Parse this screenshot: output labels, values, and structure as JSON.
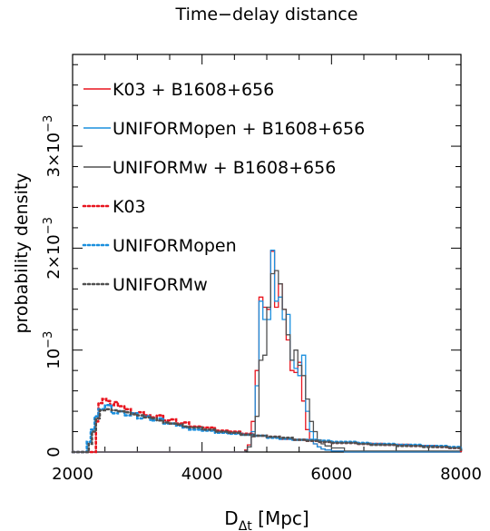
{
  "chart_data": {
    "type": "line",
    "title": "Time−delay distance",
    "xlabel": "D",
    "xlabel_sub": "Δt",
    "xlabel_unit": "[Mpc]",
    "ylabel": "probability density",
    "xlim": [
      2000,
      8000
    ],
    "ylim": [
      0,
      0.0039
    ],
    "grid": false,
    "legend_position": "top-left",
    "x_ticks": [
      {
        "value": 2000,
        "label": "2000"
      },
      {
        "value": 4000,
        "label": "4000"
      },
      {
        "value": 6000,
        "label": "6000"
      },
      {
        "value": 8000,
        "label": "8000"
      }
    ],
    "y_ticks": [
      {
        "value": 0,
        "label": "0"
      },
      {
        "value": 0.001,
        "label": "10",
        "exp": "−3"
      },
      {
        "value": 0.002,
        "label": "2×10",
        "exp": "−3"
      },
      {
        "value": 0.003,
        "label": "3×10",
        "exp": "−3"
      }
    ],
    "series": [
      {
        "name": "K03 + B1608+656",
        "color": "#e8141e",
        "style": "solid",
        "x": [
          2000,
          4600,
          4660,
          4700,
          4760,
          4820,
          4880,
          4940,
          5000,
          5060,
          5120,
          5180,
          5240,
          5300,
          5360,
          5420,
          5480,
          5540,
          5600,
          5660,
          5720,
          5780,
          5840,
          5900,
          6000,
          6200,
          8000
        ],
        "y": [
          0,
          0,
          2e-05,
          7e-05,
          0.0003,
          0.0008,
          0.00152,
          0.00142,
          0.0014,
          0.00197,
          0.00142,
          0.00165,
          0.0014,
          0.0011,
          0.0008,
          0.00078,
          0.00088,
          0.0005,
          0.00022,
          0.00012,
          8e-05,
          5e-05,
          3e-05,
          2e-05,
          1e-05,
          0,
          0
        ]
      },
      {
        "name": "UNIFORMopen + B1608+656",
        "color": "#1a8fde",
        "style": "solid",
        "x": [
          2000,
          4600,
          4660,
          4700,
          4760,
          4820,
          4880,
          4940,
          5000,
          5060,
          5120,
          5180,
          5240,
          5300,
          5360,
          5420,
          5480,
          5540,
          5600,
          5660,
          5720,
          5780,
          5840,
          5900,
          6000,
          6200,
          8000
        ],
        "y": [
          0,
          0,
          1e-05,
          5e-05,
          0.0002,
          0.00065,
          0.00148,
          0.0013,
          0.0013,
          0.00198,
          0.00148,
          0.00152,
          0.0013,
          0.00135,
          0.0009,
          0.00082,
          0.00075,
          0.00095,
          0.0004,
          0.0002,
          8e-05,
          5e-05,
          3e-05,
          2e-05,
          1e-05,
          0,
          0
        ]
      },
      {
        "name": "UNIFORMw + B1608+656",
        "color": "#505050",
        "style": "solid",
        "x": [
          2000,
          4600,
          4660,
          4700,
          4760,
          4820,
          4880,
          4940,
          5000,
          5060,
          5120,
          5180,
          5240,
          5300,
          5360,
          5420,
          5480,
          5540,
          5600,
          5660,
          5720,
          5780,
          5840,
          5900,
          6000,
          6200,
          8000
        ],
        "y": [
          0,
          0,
          1e-05,
          5e-05,
          0.00015,
          0.00035,
          0.0009,
          0.00095,
          0.00142,
          0.00175,
          0.00178,
          0.00165,
          0.0014,
          0.00115,
          0.0009,
          0.001,
          0.00085,
          0.00075,
          0.00052,
          0.0003,
          0.0002,
          0.00012,
          8e-05,
          6e-05,
          4e-05,
          1e-05,
          0
        ]
      },
      {
        "name": "K03",
        "color": "#e8141e",
        "style": "dotted",
        "x": [
          2000,
          2300,
          2360,
          2400,
          2460,
          2520,
          2580,
          2640,
          2700,
          2800,
          2900,
          3000,
          3100,
          3200,
          3300,
          3400,
          3500,
          3600,
          3700,
          3800,
          4000,
          4200,
          4400,
          4600,
          4800,
          5000,
          5200,
          5400,
          5600,
          5800,
          6000,
          6200,
          6400,
          6600,
          6800,
          7000,
          7200,
          7400,
          7600,
          7800,
          8000
        ],
        "y": [
          0,
          0,
          0.0003,
          0.00048,
          0.00052,
          0.0005,
          0.00046,
          0.00049,
          0.00045,
          0.00042,
          0.00038,
          0.00039,
          0.00036,
          0.00034,
          0.00036,
          0.00031,
          0.00032,
          0.00028,
          0.00029,
          0.00025,
          0.00024,
          0.00021,
          0.0002,
          0.00018,
          0.00016,
          0.00015,
          0.00013,
          0.00012,
          0.00011,
          0.0001,
          9e-05,
          9e-05,
          8e-05,
          8e-05,
          7e-05,
          7e-05,
          6e-05,
          6e-05,
          5e-05,
          4e-05,
          1e-05
        ]
      },
      {
        "name": "UNIFORMopen",
        "color": "#1a8fde",
        "style": "dotted",
        "x": [
          2000,
          2180,
          2220,
          2280,
          2340,
          2400,
          2500,
          2600,
          2700,
          2800,
          2900,
          3000,
          3100,
          3200,
          3300,
          3400,
          3500,
          3600,
          3700,
          3800,
          4000,
          4200,
          4400,
          4600,
          4800,
          5000,
          5200,
          5400,
          5600,
          5800,
          6000,
          6200,
          6400,
          6600,
          6800,
          7000,
          7200,
          7400,
          7600,
          7800,
          8000
        ],
        "y": [
          0,
          0,
          0.0001,
          0.00022,
          0.00035,
          0.00042,
          0.00046,
          0.00038,
          0.0004,
          0.00036,
          0.00038,
          0.00033,
          0.00035,
          0.00031,
          0.00033,
          0.00028,
          0.00028,
          0.00026,
          0.00024,
          0.00022,
          0.00021,
          0.00019,
          0.00018,
          0.00017,
          0.00016,
          0.00014,
          0.00013,
          0.00012,
          0.00012,
          0.00011,
          0.0001,
          0.0001,
          9e-05,
          8e-05,
          8e-05,
          7e-05,
          7e-05,
          6e-05,
          6e-05,
          5e-05,
          2e-05
        ]
      },
      {
        "name": "UNIFORMw",
        "color": "#505050",
        "style": "dotted",
        "x": [
          2000,
          2200,
          2250,
          2300,
          2360,
          2420,
          2500,
          2600,
          2700,
          2800,
          2900,
          3000,
          3100,
          3200,
          3300,
          3400,
          3500,
          3600,
          3700,
          3800,
          4000,
          4200,
          4400,
          4600,
          4800,
          5000,
          5200,
          5400,
          5600,
          5800,
          6000,
          6200,
          6400,
          6600,
          6800,
          7000,
          7200,
          7400,
          7600,
          7800,
          8000
        ],
        "y": [
          0,
          0,
          8e-05,
          0.0002,
          0.00033,
          0.00041,
          0.00042,
          0.00041,
          0.0004,
          0.00039,
          0.00037,
          0.00036,
          0.00034,
          0.00033,
          0.00031,
          0.00029,
          0.00028,
          0.00027,
          0.00025,
          0.00024,
          0.00022,
          0.0002,
          0.00019,
          0.00017,
          0.00016,
          0.00015,
          0.00014,
          0.00012,
          0.00011,
          0.0001,
          9e-05,
          9e-05,
          8e-05,
          7e-05,
          7e-05,
          6e-05,
          6e-05,
          5e-05,
          5e-05,
          4e-05,
          2e-05
        ]
      }
    ]
  }
}
